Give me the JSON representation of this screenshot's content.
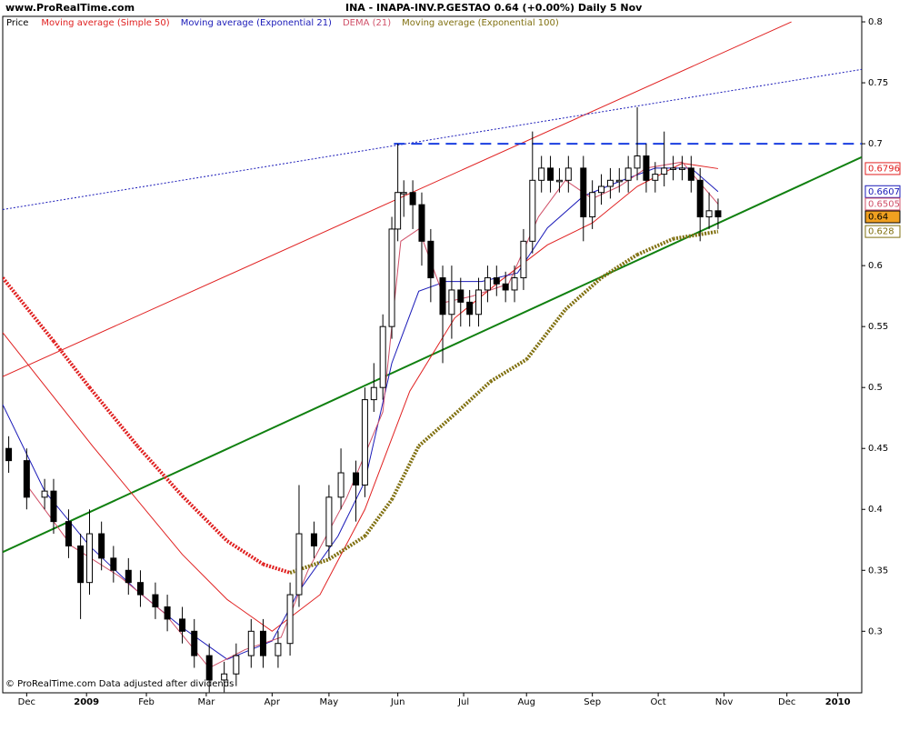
{
  "chart_data": {
    "type": "candlestick",
    "site": "www.ProRealTime.com",
    "title": "INA - INAPA-INV.P.GESTAO   0.64 (+0.00%)   Daily  5 Nov",
    "footer": "© ProRealTime.com  Data adjusted after dividends",
    "price_name": "Price",
    "price_label_color": "#f0a020",
    "x": [
      2,
      8,
      14,
      17,
      22,
      26,
      29,
      33,
      37,
      42,
      46,
      51,
      55,
      60,
      64,
      69,
      74,
      78,
      83,
      87,
      92,
      96,
      99,
      104,
      109,
      113,
      118,
      121,
      124,
      127,
      130,
      132,
      134,
      137,
      140,
      143,
      147,
      150,
      153,
      156,
      159,
      162,
      165,
      168,
      171,
      174,
      177,
      180,
      183,
      186,
      189,
      194,
      197,
      200,
      203,
      206,
      209,
      212,
      215,
      218,
      221,
      224,
      227,
      230,
      233,
      236,
      239
    ],
    "open": [
      0.45,
      0.44,
      0.41,
      0.415,
      0.39,
      0.37,
      0.34,
      0.38,
      0.36,
      0.35,
      0.34,
      0.33,
      0.32,
      0.31,
      0.3,
      0.28,
      0.26,
      0.265,
      0.28,
      0.3,
      0.28,
      0.29,
      0.33,
      0.38,
      0.37,
      0.41,
      0.43,
      0.42,
      0.49,
      0.5,
      0.55,
      0.63,
      0.66,
      0.66,
      0.65,
      0.62,
      0.59,
      0.56,
      0.58,
      0.57,
      0.56,
      0.58,
      0.59,
      0.585,
      0.58,
      0.59,
      0.62,
      0.67,
      0.68,
      0.67,
      0.67,
      0.68,
      0.64,
      0.66,
      0.665,
      0.67,
      0.67,
      0.68,
      0.69,
      0.67,
      0.675,
      0.68,
      0.68,
      0.68,
      0.67,
      0.64,
      0.645
    ],
    "high": [
      0.46,
      0.45,
      0.425,
      0.425,
      0.4,
      0.38,
      0.4,
      0.39,
      0.37,
      0.36,
      0.35,
      0.34,
      0.33,
      0.32,
      0.31,
      0.29,
      0.275,
      0.29,
      0.31,
      0.31,
      0.3,
      0.34,
      0.42,
      0.39,
      0.42,
      0.45,
      0.44,
      0.5,
      0.52,
      0.56,
      0.64,
      0.7,
      0.67,
      0.67,
      0.66,
      0.63,
      0.6,
      0.6,
      0.59,
      0.58,
      0.59,
      0.6,
      0.6,
      0.595,
      0.6,
      0.63,
      0.71,
      0.69,
      0.69,
      0.68,
      0.69,
      0.69,
      0.67,
      0.675,
      0.68,
      0.68,
      0.69,
      0.73,
      0.7,
      0.685,
      0.71,
      0.69,
      0.69,
      0.69,
      0.68,
      0.66,
      0.655
    ],
    "low": [
      0.43,
      0.4,
      0.4,
      0.38,
      0.36,
      0.31,
      0.33,
      0.35,
      0.34,
      0.33,
      0.32,
      0.31,
      0.3,
      0.29,
      0.27,
      0.25,
      0.25,
      0.255,
      0.27,
      0.27,
      0.27,
      0.28,
      0.32,
      0.36,
      0.36,
      0.4,
      0.39,
      0.41,
      0.48,
      0.49,
      0.54,
      0.62,
      0.64,
      0.63,
      0.6,
      0.57,
      0.52,
      0.54,
      0.55,
      0.55,
      0.55,
      0.57,
      0.575,
      0.57,
      0.57,
      0.58,
      0.61,
      0.66,
      0.66,
      0.66,
      0.66,
      0.62,
      0.63,
      0.65,
      0.655,
      0.66,
      0.66,
      0.67,
      0.66,
      0.66,
      0.665,
      0.67,
      0.67,
      0.66,
      0.62,
      0.63,
      0.63
    ],
    "close": [
      0.44,
      0.41,
      0.415,
      0.39,
      0.37,
      0.34,
      0.38,
      0.36,
      0.35,
      0.34,
      0.33,
      0.32,
      0.31,
      0.3,
      0.28,
      0.26,
      0.265,
      0.28,
      0.3,
      0.28,
      0.29,
      0.33,
      0.38,
      0.37,
      0.41,
      0.43,
      0.42,
      0.49,
      0.5,
      0.55,
      0.63,
      0.66,
      0.66,
      0.65,
      0.62,
      0.59,
      0.56,
      0.58,
      0.57,
      0.56,
      0.58,
      0.59,
      0.585,
      0.58,
      0.59,
      0.62,
      0.67,
      0.68,
      0.67,
      0.67,
      0.68,
      0.64,
      0.66,
      0.665,
      0.67,
      0.67,
      0.68,
      0.69,
      0.67,
      0.675,
      0.68,
      0.68,
      0.68,
      0.67,
      0.64,
      0.645,
      0.64
    ],
    "overlays": [
      {
        "name": "Moving average (Simple 50)",
        "color": "#e02020",
        "width": 1,
        "dash": "",
        "x": [
          0,
          30,
          60,
          75,
          90,
          106,
          121,
          136,
          151,
          166,
          182,
          197,
          212,
          227,
          239
        ],
        "values": [
          0.545,
          0.452,
          0.363,
          0.326,
          0.3,
          0.33,
          0.4,
          0.497,
          0.557,
          0.587,
          0.617,
          0.635,
          0.665,
          0.684,
          0.6796
        ]
      },
      {
        "name": "Moving average (Exponential 21)",
        "color": "#1a1ab8",
        "width": 1,
        "dash": "",
        "x": [
          0,
          14,
          29,
          45,
          60,
          75,
          90,
          99,
          112,
          121,
          130,
          139,
          148,
          160,
          172,
          182,
          194,
          206,
          218,
          230,
          239
        ],
        "values": [
          0.486,
          0.415,
          0.37,
          0.333,
          0.303,
          0.277,
          0.292,
          0.333,
          0.378,
          0.423,
          0.52,
          0.579,
          0.587,
          0.587,
          0.594,
          0.631,
          0.657,
          0.669,
          0.68,
          0.68,
          0.6607
        ]
      },
      {
        "name": "DEMA (21)",
        "color": "#d05068",
        "width": 1,
        "dash": "",
        "x": [
          8,
          23,
          39,
          54,
          69,
          81,
          93,
          102,
          115,
          127,
          133,
          139,
          148,
          157,
          169,
          179,
          188,
          197,
          206,
          215,
          227,
          239
        ],
        "values": [
          0.42,
          0.37,
          0.345,
          0.315,
          0.27,
          0.285,
          0.295,
          0.35,
          0.41,
          0.48,
          0.62,
          0.63,
          0.57,
          0.575,
          0.585,
          0.64,
          0.67,
          0.655,
          0.665,
          0.68,
          0.685,
          0.6505
        ]
      },
      {
        "name": "Moving average (Exponential 100)",
        "color": "#807010",
        "falling_color": "#e02020",
        "width": 4,
        "dash": "2 1.5",
        "x": [
          0,
          17,
          29,
          45,
          60,
          75,
          87,
          96,
          109,
          121,
          130,
          139,
          151,
          163,
          175,
          188,
          200,
          212,
          224,
          239
        ],
        "values": [
          0.59,
          0.538,
          0.5,
          0.452,
          0.411,
          0.374,
          0.355,
          0.348,
          0.359,
          0.378,
          0.408,
          0.452,
          0.478,
          0.505,
          0.523,
          0.564,
          0.59,
          0.609,
          0.622,
          0.628
        ]
      }
    ],
    "trendlines": [
      {
        "color": "#e02020",
        "width": 1,
        "dash": "",
        "x": [
          0,
          263.5
        ],
        "values": [
          0.509,
          0.8
        ]
      },
      {
        "color": "#1a1ab8",
        "width": 1,
        "dash": "2 2",
        "x": [
          0,
          287
        ],
        "values": [
          0.646,
          0.761
        ]
      },
      {
        "color": "#108010",
        "width": 2,
        "dash": "",
        "x": [
          0,
          287
        ],
        "values": [
          0.365,
          0.689
        ]
      },
      {
        "color": "#1a3ee0",
        "width": 2,
        "dash": "12 7",
        "x": [
          130.7,
          287
        ],
        "values": [
          0.7,
          0.7
        ]
      }
    ],
    "xlim": [
      0,
      287
    ],
    "xticks": [
      {
        "value": 8,
        "label": "Dec"
      },
      {
        "value": 28,
        "label": "2009"
      },
      {
        "value": 48,
        "label": "Feb"
      },
      {
        "value": 68,
        "label": "Mar"
      },
      {
        "value": 90,
        "label": "Apr"
      },
      {
        "value": 109,
        "label": "May"
      },
      {
        "value": 132,
        "label": "Jun"
      },
      {
        "value": 154,
        "label": "Jul"
      },
      {
        "value": 175,
        "label": "Aug"
      },
      {
        "value": 197,
        "label": "Sep"
      },
      {
        "value": 219,
        "label": "Oct"
      },
      {
        "value": 241,
        "label": "Nov"
      },
      {
        "value": 262,
        "label": "Dec"
      },
      {
        "value": 279,
        "label": "2010"
      }
    ],
    "ylim": [
      0.2495,
      0.8045
    ],
    "yticks": [
      0.8,
      0.75,
      0.7,
      0.6,
      0.55,
      0.5,
      0.45,
      0.4,
      0.35,
      0.3
    ]
  }
}
